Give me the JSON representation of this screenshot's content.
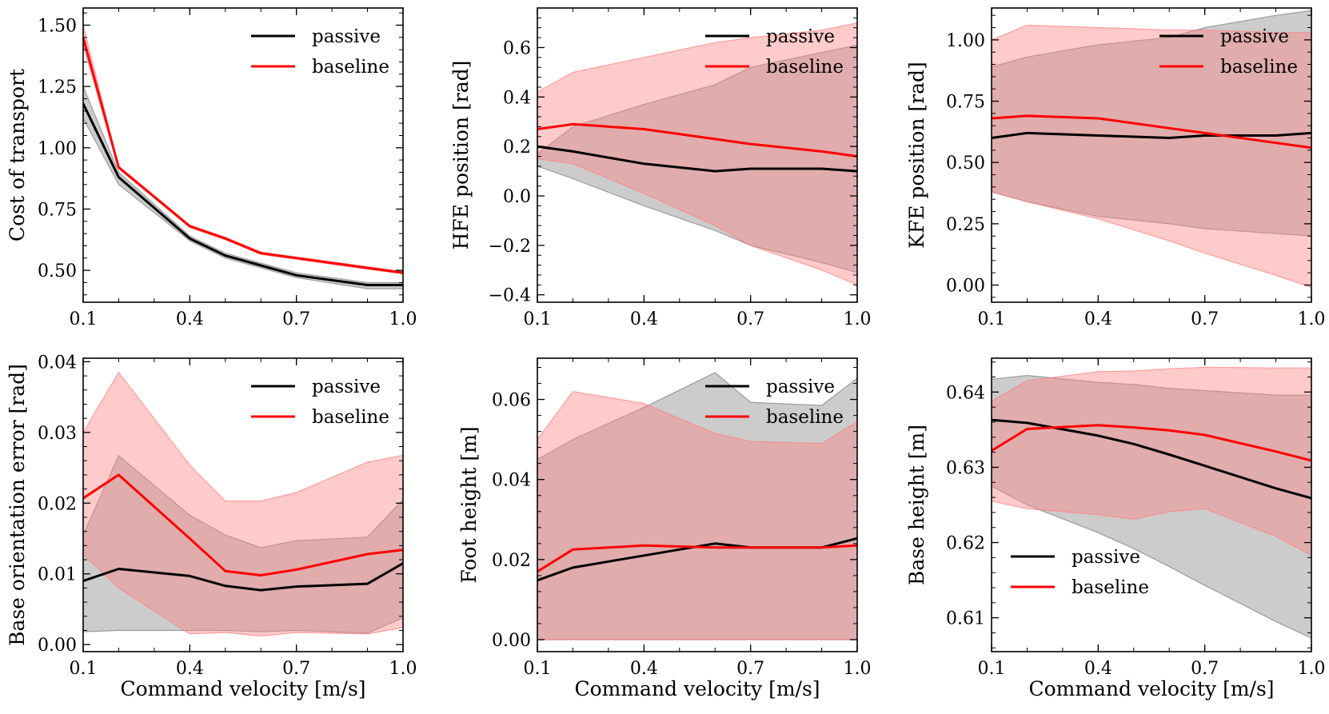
{
  "chart_data": [
    {
      "type": "line",
      "id": "cot",
      "ylabel": "Cost of transport",
      "xlabel": "",
      "xlim": [
        0.1,
        1.0
      ],
      "ylim": [
        0.37,
        1.57
      ],
      "xticks": [
        0.1,
        0.4,
        0.7,
        1.0
      ],
      "xtick_labels": [
        "0.1",
        "0.4",
        "0.7",
        "1.0"
      ],
      "yticks": [
        0.5,
        0.75,
        1.0,
        1.25,
        1.5
      ],
      "ytick_labels": [
        "0.50",
        "0.75",
        "1.00",
        "1.25",
        "1.50"
      ],
      "legend": "top-right",
      "x": [
        0.1,
        0.2,
        0.4,
        0.5,
        0.6,
        0.7,
        0.9,
        1.0
      ],
      "series": [
        {
          "name": "passive",
          "color": "#000000",
          "band_color": "#7f7f7f",
          "mean": [
            1.18,
            0.88,
            0.63,
            0.56,
            0.52,
            0.48,
            0.44,
            0.44
          ],
          "lower": [
            1.12,
            0.85,
            0.62,
            0.55,
            0.51,
            0.47,
            0.425,
            0.425
          ],
          "upper": [
            1.25,
            0.9,
            0.64,
            0.57,
            0.53,
            0.49,
            0.45,
            0.45
          ]
        },
        {
          "name": "baseline",
          "color": "#ff0000",
          "band_color": "#ff8080",
          "mean": [
            1.45,
            0.92,
            0.68,
            0.63,
            0.57,
            0.55,
            0.51,
            0.49
          ],
          "lower": [
            1.42,
            0.915,
            0.675,
            0.625,
            0.565,
            0.545,
            0.505,
            0.485
          ],
          "upper": [
            1.5,
            0.925,
            0.685,
            0.635,
            0.575,
            0.555,
            0.515,
            0.495
          ]
        }
      ]
    },
    {
      "type": "line",
      "id": "hfe",
      "ylabel": "HFE position [rad]",
      "xlabel": "",
      "xlim": [
        0.1,
        1.0
      ],
      "ylim": [
        -0.43,
        0.76
      ],
      "xticks": [
        0.1,
        0.4,
        0.7,
        1.0
      ],
      "xtick_labels": [
        "0.1",
        "0.4",
        "0.7",
        "1.0"
      ],
      "yticks": [
        -0.4,
        -0.2,
        0.0,
        0.2,
        0.4,
        0.6
      ],
      "ytick_labels": [
        "−0.4",
        "−0.2",
        "0.0",
        "0.2",
        "0.4",
        "0.6"
      ],
      "legend": "top-right",
      "x": [
        0.1,
        0.2,
        0.4,
        0.6,
        0.7,
        0.9,
        1.0
      ],
      "series": [
        {
          "name": "passive",
          "color": "#000000",
          "band_color": "#7f7f7f",
          "mean": [
            0.2,
            0.18,
            0.13,
            0.1,
            0.11,
            0.11,
            0.1
          ],
          "lower": [
            0.12,
            0.07,
            -0.04,
            -0.14,
            -0.2,
            -0.27,
            -0.31
          ],
          "upper": [
            0.17,
            0.28,
            0.37,
            0.45,
            0.52,
            0.58,
            0.61
          ]
        },
        {
          "name": "baseline",
          "color": "#ff0000",
          "band_color": "#ff8080",
          "mean": [
            0.27,
            0.29,
            0.27,
            0.23,
            0.21,
            0.18,
            0.16
          ],
          "lower": [
            0.15,
            0.13,
            0.01,
            -0.12,
            -0.2,
            -0.3,
            -0.36
          ],
          "upper": [
            0.42,
            0.5,
            0.56,
            0.62,
            0.64,
            0.67,
            0.7
          ]
        }
      ]
    },
    {
      "type": "line",
      "id": "kfe",
      "ylabel": "KFE position [rad]",
      "xlabel": "",
      "xlim": [
        0.1,
        1.0
      ],
      "ylim": [
        -0.07,
        1.13
      ],
      "xticks": [
        0.1,
        0.4,
        0.7,
        1.0
      ],
      "xtick_labels": [
        "0.1",
        "0.4",
        "0.7",
        "1.0"
      ],
      "yticks": [
        0.0,
        0.25,
        0.5,
        0.75,
        1.0
      ],
      "ytick_labels": [
        "0.00",
        "0.25",
        "0.50",
        "0.75",
        "1.00"
      ],
      "legend": "top-right",
      "x": [
        0.1,
        0.2,
        0.4,
        0.6,
        0.7,
        0.9,
        1.0
      ],
      "series": [
        {
          "name": "passive",
          "color": "#000000",
          "band_color": "#7f7f7f",
          "mean": [
            0.6,
            0.62,
            0.61,
            0.6,
            0.61,
            0.61,
            0.62
          ],
          "lower": [
            0.38,
            0.34,
            0.28,
            0.25,
            0.23,
            0.21,
            0.2
          ],
          "upper": [
            0.89,
            0.93,
            0.98,
            1.01,
            1.05,
            1.1,
            1.12
          ]
        },
        {
          "name": "baseline",
          "color": "#ff0000",
          "band_color": "#ff8080",
          "mean": [
            0.68,
            0.69,
            0.68,
            0.64,
            0.62,
            0.58,
            0.56
          ],
          "lower": [
            0.38,
            0.34,
            0.27,
            0.18,
            0.13,
            0.04,
            -0.01
          ],
          "upper": [
            1.0,
            1.06,
            1.05,
            1.04,
            1.04,
            1.03,
            1.03
          ]
        }
      ]
    },
    {
      "type": "line",
      "id": "orientation",
      "ylabel": "Base orientation error [rad]",
      "xlabel": "Command velocity [m/s]",
      "xlim": [
        0.1,
        1.0
      ],
      "ylim": [
        -0.001,
        0.0405
      ],
      "xticks": [
        0.1,
        0.4,
        0.7,
        1.0
      ],
      "xtick_labels": [
        "0.1",
        "0.4",
        "0.7",
        "1.0"
      ],
      "yticks": [
        0.0,
        0.01,
        0.02,
        0.03,
        0.04
      ],
      "ytick_labels": [
        "0.00",
        "0.01",
        "0.02",
        "0.03",
        "0.04"
      ],
      "legend": "top-right",
      "x": [
        0.1,
        0.2,
        0.4,
        0.5,
        0.6,
        0.7,
        0.9,
        1.0
      ],
      "series": [
        {
          "name": "passive",
          "color": "#000000",
          "band_color": "#7f7f7f",
          "mean": [
            0.009,
            0.0107,
            0.0097,
            0.0083,
            0.0077,
            0.0082,
            0.0086,
            0.0115
          ],
          "lower": [
            0.0018,
            0.002,
            0.002,
            0.002,
            0.0018,
            0.002,
            0.0016,
            0.0038
          ],
          "upper": [
            0.0155,
            0.0267,
            0.0183,
            0.0155,
            0.0137,
            0.0147,
            0.0152,
            0.0205
          ]
        },
        {
          "name": "baseline",
          "color": "#ff0000",
          "band_color": "#ff8080",
          "mean": [
            0.0207,
            0.024,
            0.015,
            0.0104,
            0.0098,
            0.0106,
            0.0128,
            0.0134
          ],
          "lower": [
            0.0128,
            0.008,
            0.0015,
            0.0017,
            0.0012,
            0.0017,
            0.0015,
            0.0024
          ],
          "upper": [
            0.03,
            0.0385,
            0.0254,
            0.0203,
            0.0203,
            0.0215,
            0.0258,
            0.0268
          ]
        }
      ]
    },
    {
      "type": "line",
      "id": "foot",
      "ylabel": "Foot height [m]",
      "xlabel": "Command velocity [m/s]",
      "xlim": [
        0.1,
        1.0
      ],
      "ylim": [
        -0.003,
        0.0703
      ],
      "xticks": [
        0.1,
        0.4,
        0.7,
        1.0
      ],
      "xtick_labels": [
        "0.1",
        "0.4",
        "0.7",
        "1.0"
      ],
      "yticks": [
        0.0,
        0.02,
        0.04,
        0.06
      ],
      "ytick_labels": [
        "0.00",
        "0.02",
        "0.04",
        "0.06"
      ],
      "legend": "top-right",
      "x": [
        0.1,
        0.2,
        0.4,
        0.6,
        0.7,
        0.9,
        1.0
      ],
      "series": [
        {
          "name": "passive",
          "color": "#000000",
          "band_color": "#7f7f7f",
          "mean": [
            0.0148,
            0.018,
            0.021,
            0.024,
            0.023,
            0.023,
            0.0253
          ],
          "lower": [
            0.0,
            0.0,
            0.0,
            0.0,
            0.0,
            0.0,
            0.0
          ],
          "upper": [
            0.045,
            0.05,
            0.058,
            0.0667,
            0.0593,
            0.0585,
            0.0653
          ]
        },
        {
          "name": "baseline",
          "color": "#ff0000",
          "band_color": "#ff8080",
          "mean": [
            0.017,
            0.0225,
            0.0235,
            0.023,
            0.023,
            0.023,
            0.0235
          ],
          "lower": [
            0.0,
            0.0,
            0.0,
            0.0,
            0.0,
            0.0,
            0.0
          ],
          "upper": [
            0.05,
            0.062,
            0.059,
            0.0515,
            0.0495,
            0.049,
            0.0545
          ]
        }
      ]
    },
    {
      "type": "line",
      "id": "base",
      "ylabel": "Base height [m]",
      "xlabel": "Command velocity [m/s]",
      "xlim": [
        0.1,
        1.0
      ],
      "ylim": [
        0.6055,
        0.6445
      ],
      "xticks": [
        0.1,
        0.4,
        0.7,
        1.0
      ],
      "xtick_labels": [
        "0.1",
        "0.4",
        "0.7",
        "1.0"
      ],
      "yticks": [
        0.61,
        0.62,
        0.63,
        0.64
      ],
      "ytick_labels": [
        "0.61",
        "0.62",
        "0.63",
        "0.64"
      ],
      "legend": "bottom-left",
      "x": [
        0.1,
        0.2,
        0.4,
        0.5,
        0.6,
        0.7,
        0.9,
        1.0
      ],
      "series": [
        {
          "name": "passive",
          "color": "#000000",
          "band_color": "#7f7f7f",
          "mean": [
            0.6363,
            0.6359,
            0.6342,
            0.6331,
            0.6317,
            0.6302,
            0.6272,
            0.6259
          ],
          "lower": [
            0.6275,
            0.625,
            0.6213,
            0.6192,
            0.6168,
            0.6143,
            0.6095,
            0.6073
          ],
          "upper": [
            0.6417,
            0.6422,
            0.6413,
            0.641,
            0.6405,
            0.6402,
            0.6396,
            0.6396
          ]
        },
        {
          "name": "baseline",
          "color": "#ff0000",
          "band_color": "#ff8080",
          "mean": [
            0.6322,
            0.6351,
            0.6356,
            0.6353,
            0.6349,
            0.6343,
            0.6321,
            0.6309
          ],
          "lower": [
            0.6255,
            0.6245,
            0.6237,
            0.6231,
            0.6241,
            0.6245,
            0.6208,
            0.6183
          ],
          "upper": [
            0.6388,
            0.6415,
            0.6427,
            0.6428,
            0.6431,
            0.6433,
            0.6432,
            0.6432
          ]
        }
      ]
    }
  ]
}
